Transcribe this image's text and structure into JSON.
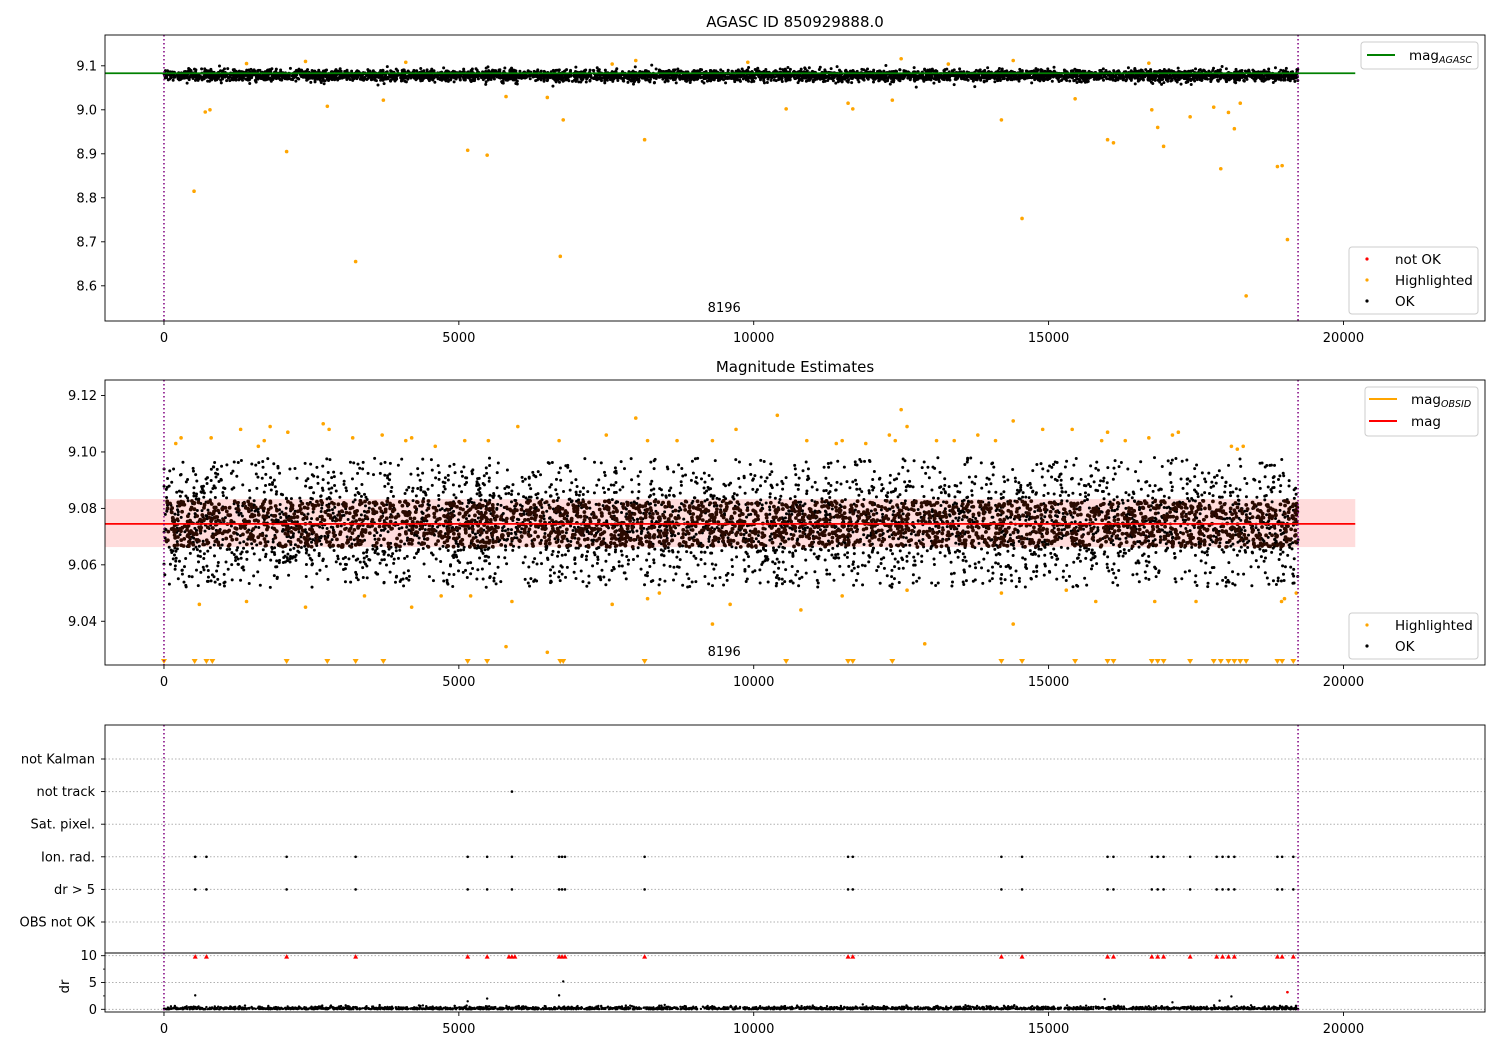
{
  "figure": {
    "background": "#ffffff"
  },
  "chart_data": [
    {
      "type": "scatter",
      "title": "AGASC ID 850929888.0",
      "xlim": [
        -1000,
        22400
      ],
      "ylim": [
        8.52,
        9.17
      ],
      "x_ticks": [
        0,
        5000,
        10000,
        15000,
        20000
      ],
      "y_ticks": [
        8.6,
        8.7,
        8.8,
        8.9,
        9.0,
        9.1
      ],
      "y_tick_labels": [
        "8.6",
        "8.7",
        "8.8",
        "8.9",
        "9.0",
        "9.1"
      ],
      "vlines": [
        0,
        19230
      ],
      "vline_color": "#800080",
      "annotation": "8196",
      "annotation_x": 9500,
      "legend_upper": {
        "placement": "top-right",
        "entries": [
          {
            "label": "mag",
            "sub": "AGASC",
            "color": "#008000",
            "kind": "line"
          }
        ]
      },
      "legend_lower": {
        "placement": "bottom-right",
        "entries": [
          {
            "label": "not OK",
            "color": "#ff0000",
            "kind": "marker"
          },
          {
            "label": "Highlighted",
            "color": "#ffa500",
            "kind": "marker"
          },
          {
            "label": "OK",
            "color": "#000000",
            "kind": "marker"
          }
        ]
      },
      "mag_agasc": 9.083,
      "mag_agasc_xrange": [
        -1000,
        20200
      ],
      "ok_band": {
        "center": 9.078,
        "spread": 0.014,
        "x_range": [
          0,
          19230
        ]
      },
      "highlighted_points": [
        [
          510,
          8.815
        ],
        [
          700,
          8.995
        ],
        [
          780,
          9.0
        ],
        [
          2080,
          8.905
        ],
        [
          2770,
          9.008
        ],
        [
          3250,
          8.655
        ],
        [
          3720,
          9.022
        ],
        [
          5150,
          8.908
        ],
        [
          5480,
          8.897
        ],
        [
          5800,
          9.03
        ],
        [
          6500,
          9.028
        ],
        [
          6720,
          8.667
        ],
        [
          6770,
          8.977
        ],
        [
          8150,
          8.932
        ],
        [
          10550,
          9.002
        ],
        [
          11600,
          9.015
        ],
        [
          11680,
          9.002
        ],
        [
          12350,
          9.022
        ],
        [
          14200,
          8.977
        ],
        [
          14550,
          8.753
        ],
        [
          15450,
          9.025
        ],
        [
          16000,
          8.932
        ],
        [
          16100,
          8.925
        ],
        [
          16750,
          9.0
        ],
        [
          16850,
          8.96
        ],
        [
          16950,
          8.917
        ],
        [
          17400,
          8.984
        ],
        [
          17800,
          9.006
        ],
        [
          17920,
          8.866
        ],
        [
          18050,
          8.994
        ],
        [
          18150,
          8.957
        ],
        [
          18250,
          9.015
        ],
        [
          18350,
          8.577
        ],
        [
          18880,
          8.871
        ],
        [
          18960,
          8.873
        ],
        [
          19050,
          8.705
        ],
        [
          1400,
          9.105
        ],
        [
          2400,
          9.11
        ],
        [
          4100,
          9.108
        ],
        [
          7600,
          9.104
        ],
        [
          8000,
          9.112
        ],
        [
          9900,
          9.108
        ],
        [
          12500,
          9.116
        ],
        [
          13300,
          9.104
        ],
        [
          14400,
          9.112
        ],
        [
          16700,
          9.106
        ]
      ]
    },
    {
      "type": "scatter",
      "title": "Magnitude Estimates",
      "xlim": [
        -1000,
        22400
      ],
      "ylim": [
        9.0245,
        9.1255
      ],
      "x_ticks": [
        0,
        5000,
        10000,
        15000,
        20000
      ],
      "y_ticks": [
        9.04,
        9.06,
        9.08,
        9.1,
        9.12
      ],
      "y_tick_labels": [
        "9.04",
        "9.06",
        "9.08",
        "9.10",
        "9.12"
      ],
      "vlines": [
        0,
        19230
      ],
      "vline_color": "#800080",
      "annotation": "8196",
      "annotation_x": 9500,
      "legend_upper": {
        "placement": "top-right",
        "entries": [
          {
            "label": "mag",
            "sub": "OBSID",
            "color": "#ffa500",
            "kind": "line"
          },
          {
            "label": "mag",
            "sub": "",
            "color": "#ff0000",
            "kind": "line"
          }
        ]
      },
      "legend_lower": {
        "placement": "bottom-right",
        "entries": [
          {
            "label": "Highlighted",
            "color": "#ffa500",
            "kind": "marker"
          },
          {
            "label": "OK",
            "color": "#000000",
            "kind": "marker"
          }
        ]
      },
      "mag_line": 9.0745,
      "mag_band": [
        9.0663,
        9.0833
      ],
      "mag_line_xrange": [
        -1000,
        20200
      ],
      "band_color": "#ffd6d6",
      "dense_core": {
        "center": 9.0745,
        "spread": 0.0082,
        "color": "#2b0a00"
      },
      "ok_scatter": {
        "center": 9.0745,
        "spread": 0.021
      },
      "highlighted_points": [
        [
          200,
          9.103
        ],
        [
          290,
          9.105
        ],
        [
          800,
          9.105
        ],
        [
          1300,
          9.108
        ],
        [
          1600,
          9.102
        ],
        [
          1700,
          9.104
        ],
        [
          1800,
          9.109
        ],
        [
          2100,
          9.107
        ],
        [
          2700,
          9.11
        ],
        [
          2800,
          9.108
        ],
        [
          3200,
          9.105
        ],
        [
          3700,
          9.106
        ],
        [
          4100,
          9.104
        ],
        [
          4200,
          9.105
        ],
        [
          4600,
          9.102
        ],
        [
          5100,
          9.104
        ],
        [
          5500,
          9.104
        ],
        [
          6000,
          9.109
        ],
        [
          6700,
          9.104
        ],
        [
          7500,
          9.106
        ],
        [
          8000,
          9.112
        ],
        [
          8200,
          9.104
        ],
        [
          8700,
          9.104
        ],
        [
          9300,
          9.104
        ],
        [
          9700,
          9.108
        ],
        [
          10400,
          9.113
        ],
        [
          10900,
          9.104
        ],
        [
          11400,
          9.103
        ],
        [
          11500,
          9.104
        ],
        [
          11900,
          9.103
        ],
        [
          12300,
          9.106
        ],
        [
          12400,
          9.104
        ],
        [
          12500,
          9.115
        ],
        [
          12600,
          9.109
        ],
        [
          13100,
          9.104
        ],
        [
          13400,
          9.104
        ],
        [
          13800,
          9.106
        ],
        [
          14100,
          9.104
        ],
        [
          14400,
          9.111
        ],
        [
          14900,
          9.108
        ],
        [
          15400,
          9.108
        ],
        [
          15900,
          9.104
        ],
        [
          16000,
          9.107
        ],
        [
          16300,
          9.104
        ],
        [
          16700,
          9.105
        ],
        [
          17100,
          9.106
        ],
        [
          17200,
          9.107
        ],
        [
          18100,
          9.102
        ],
        [
          18200,
          9.101
        ],
        [
          18300,
          9.102
        ],
        [
          600,
          9.046
        ],
        [
          1400,
          9.047
        ],
        [
          2400,
          9.045
        ],
        [
          3400,
          9.049
        ],
        [
          4200,
          9.045
        ],
        [
          4700,
          9.049
        ],
        [
          5200,
          9.049
        ],
        [
          5900,
          9.047
        ],
        [
          7600,
          9.046
        ],
        [
          8200,
          9.048
        ],
        [
          8400,
          9.05
        ],
        [
          9300,
          9.039
        ],
        [
          9600,
          9.046
        ],
        [
          10800,
          9.044
        ],
        [
          11500,
          9.049
        ],
        [
          12600,
          9.051
        ],
        [
          12900,
          9.032
        ],
        [
          14200,
          9.05
        ],
        [
          14400,
          9.039
        ],
        [
          15300,
          9.051
        ],
        [
          15800,
          9.047
        ],
        [
          16800,
          9.047
        ],
        [
          17500,
          9.047
        ],
        [
          18950,
          9.047
        ],
        [
          19000,
          9.048
        ],
        [
          19200,
          9.05
        ],
        [
          5800,
          9.031
        ],
        [
          6500,
          9.029
        ]
      ],
      "clipped_low_x": [
        0,
        520,
        720,
        820,
        2080,
        2770,
        3250,
        3720,
        5150,
        5480,
        6720,
        6770,
        8150,
        10550,
        11600,
        11680,
        12350,
        14200,
        14550,
        15450,
        16000,
        16100,
        16750,
        16850,
        16950,
        17400,
        17800,
        17920,
        18050,
        18150,
        18250,
        18350,
        18880,
        18960,
        19150
      ]
    },
    {
      "type": "scatter",
      "title": "",
      "xlim": [
        -1000,
        22400
      ],
      "x_ticks": [
        0,
        5000,
        10000,
        15000,
        20000
      ],
      "vlines": [
        0,
        19230
      ],
      "vline_color": "#800080",
      "flag_rows": [
        "not Kalman",
        "not track",
        "Sat. pixel.",
        "Ion. rad.",
        "dr > 5",
        "OBS not OK"
      ],
      "flag_events": {
        "not track": [
          5900
        ],
        "Ion. rad.": [
          530,
          720,
          2080,
          3250,
          5150,
          5480,
          5900,
          6700,
          6750,
          6800,
          8150,
          11600,
          11680,
          14200,
          14550,
          16000,
          16100,
          16750,
          16850,
          16950,
          17400,
          17850,
          17950,
          18050,
          18150,
          18880,
          18960,
          19150
        ],
        "dr > 5": [
          530,
          720,
          2080,
          3250,
          5150,
          5480,
          5900,
          6700,
          6750,
          6800,
          8150,
          11600,
          11680,
          14200,
          14550,
          16000,
          16100,
          16750,
          16850,
          16950,
          17400,
          17850,
          17950,
          18050,
          18150,
          18880,
          18960,
          19150
        ]
      },
      "dr_ylabel": "dr",
      "dr_ylim": [
        -0.5,
        10.5
      ],
      "dr_yticks": [
        0,
        5,
        10
      ],
      "dr_ytick_labels": [
        "0",
        "5",
        "10"
      ],
      "dr_clipped_x": [
        530,
        720,
        2080,
        3250,
        5150,
        5480,
        5850,
        5900,
        5950,
        6700,
        6750,
        6800,
        8150,
        11600,
        11680,
        14200,
        14550,
        16000,
        16100,
        16750,
        16850,
        16950,
        17400,
        17850,
        17950,
        18050,
        18150,
        18880,
        18960,
        19150
      ],
      "dr_outliers": [
        [
          530,
          2.6
        ],
        [
          6700,
          2.6
        ],
        [
          6770,
          5.2
        ],
        [
          5150,
          1.5
        ],
        [
          5480,
          2.0
        ],
        [
          15950,
          1.9
        ],
        [
          17100,
          1.3
        ],
        [
          17900,
          1.6
        ],
        [
          18100,
          2.4
        ],
        [
          19050,
          3.2
        ]
      ]
    }
  ]
}
